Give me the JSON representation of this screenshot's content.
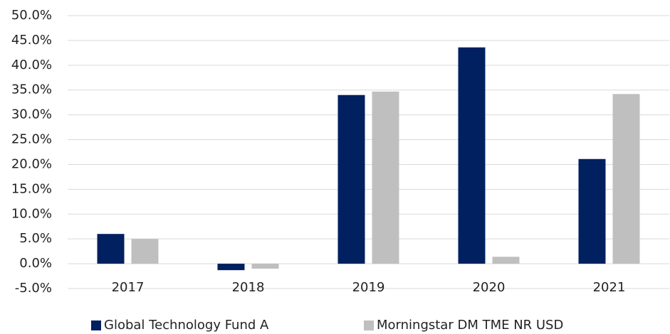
{
  "chart_data": {
    "type": "bar",
    "categories": [
      "2017",
      "2018",
      "2019",
      "2020",
      "2021"
    ],
    "series": [
      {
        "name": "Global Technology Fund A",
        "color": "#002060",
        "values": [
          6.0,
          -1.3,
          34.0,
          43.6,
          21.1
        ]
      },
      {
        "name": "Morningstar DM TME NR USD",
        "color": "#bfbfbf",
        "values": [
          5.0,
          -1.0,
          34.7,
          1.4,
          34.2
        ]
      }
    ],
    "ylim": [
      -5,
      50
    ],
    "yticks": [
      {
        "value": -5,
        "label": "-5.0%"
      },
      {
        "value": 0,
        "label": "0.0%"
      },
      {
        "value": 5,
        "label": "5.0%"
      },
      {
        "value": 10,
        "label": "10.0%"
      },
      {
        "value": 15,
        "label": "15.0%"
      },
      {
        "value": 20,
        "label": "20.0%"
      },
      {
        "value": 25,
        "label": "25.0%"
      },
      {
        "value": 30,
        "label": "30.0%"
      },
      {
        "value": 35,
        "label": "35.0%"
      },
      {
        "value": 40,
        "label": "40.0%"
      },
      {
        "value": 45,
        "label": "45.0%"
      },
      {
        "value": 50,
        "label": "50.0%"
      }
    ],
    "grid": true,
    "legend": "bottom"
  }
}
